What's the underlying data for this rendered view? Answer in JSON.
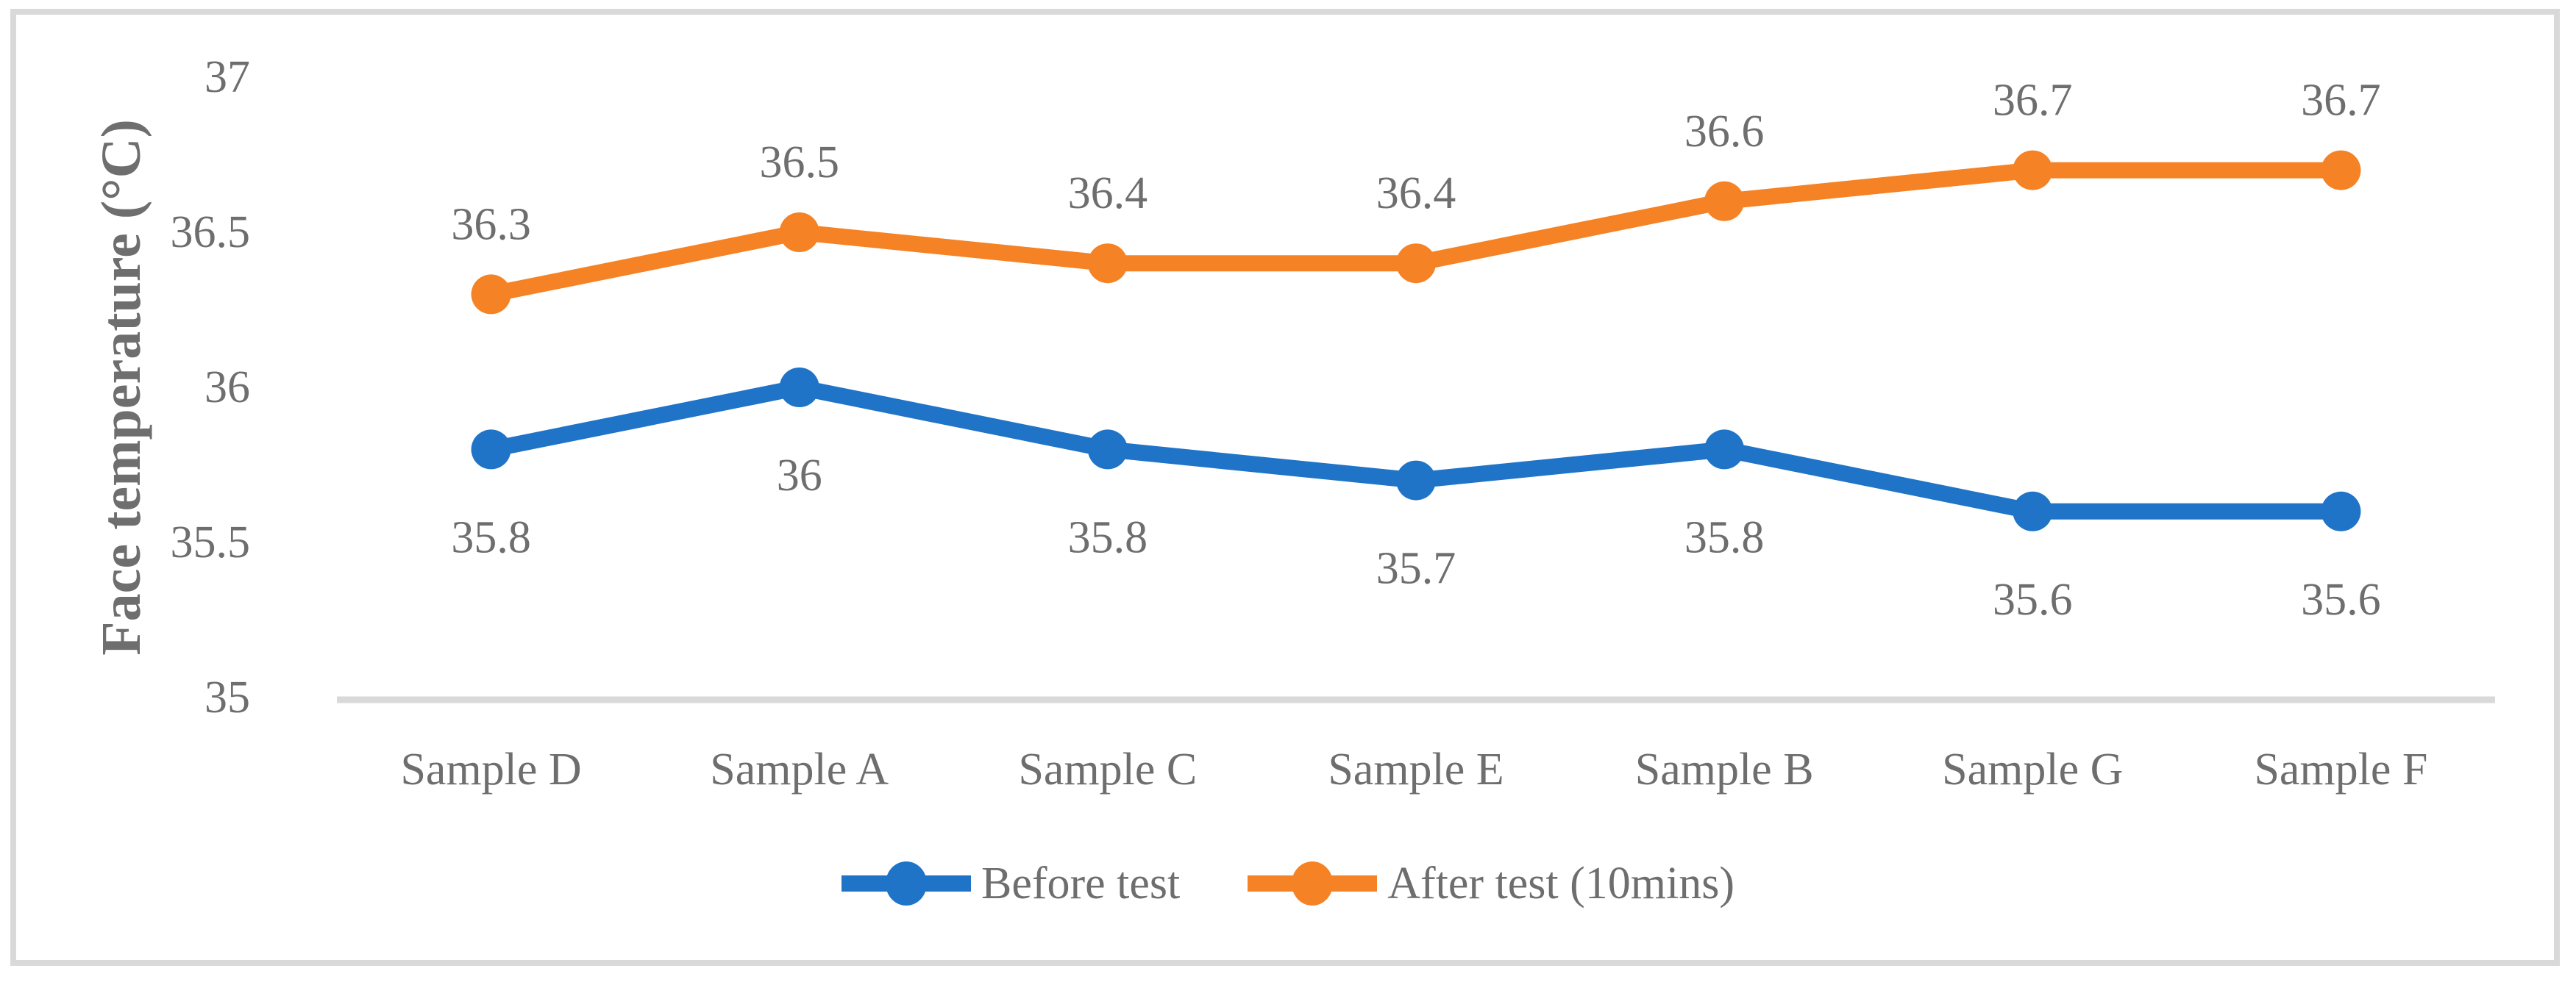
{
  "figure": {
    "background": "#FFFFFF",
    "border_color": "#D9D9D9"
  },
  "chart_data": {
    "type": "line",
    "title": "",
    "xlabel": "",
    "ylabel": "Face temperature (°C)",
    "categories": [
      "Sample D",
      "Sample A",
      "Sample C",
      "Sample E",
      "Sample B",
      "Sample G",
      "Sample F"
    ],
    "series": [
      {
        "name": "Before test",
        "color": "#1F74C8",
        "marker": "circle",
        "label_position": "below",
        "values": [
          35.8,
          36,
          35.8,
          35.7,
          35.8,
          35.6,
          35.6
        ]
      },
      {
        "name": "After test (10mins)",
        "color": "#F58225",
        "marker": "circle",
        "label_position": "above",
        "values": [
          36.3,
          36.5,
          36.4,
          36.4,
          36.6,
          36.7,
          36.7
        ]
      }
    ],
    "y_axis": {
      "min": 35,
      "max": 37,
      "tick_interval": 0.5,
      "tick_labels": [
        "35",
        "35.5",
        "36",
        "36.5",
        "37"
      ]
    },
    "gridlines": false,
    "legend_position": "bottom",
    "text_color": "#6E6E6E",
    "axis_line_color": "#D9D9D9"
  }
}
